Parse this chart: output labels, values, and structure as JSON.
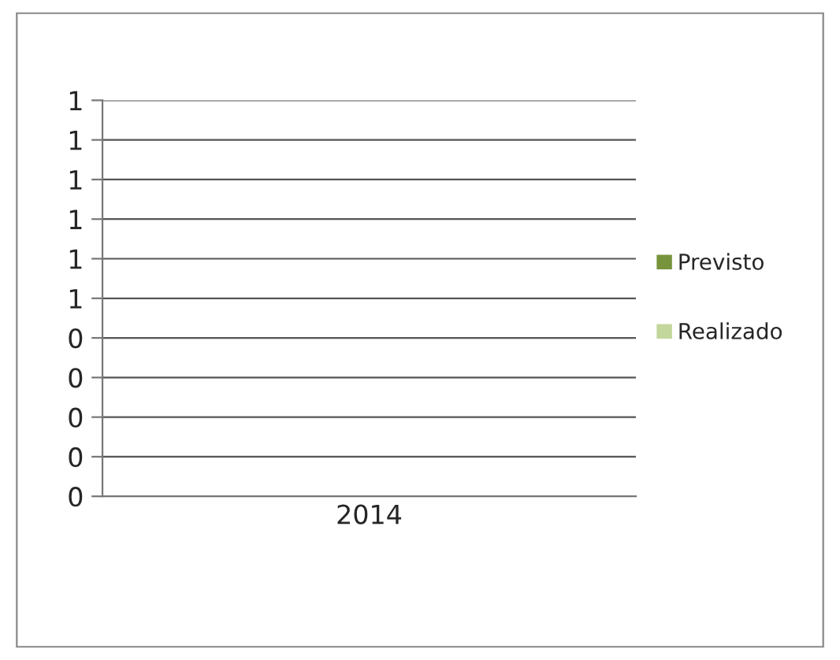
{
  "chart_data": {
    "type": "bar",
    "categories": [
      "2014"
    ],
    "series": [
      {
        "name": "Previsto",
        "color": "#77933c",
        "values": [
          null
        ]
      },
      {
        "name": "Realizado",
        "color": "#c3d69b",
        "values": [
          null
        ]
      }
    ],
    "ylim": [
      0,
      1
    ],
    "yticks": [
      {
        "value": 0,
        "label": "0"
      },
      {
        "value": 0.1,
        "label": "0"
      },
      {
        "value": 0.2,
        "label": "0"
      },
      {
        "value": 0.3,
        "label": "0"
      },
      {
        "value": 0.4,
        "label": "0"
      },
      {
        "value": 0.5,
        "label": "1"
      },
      {
        "value": 0.6,
        "label": "1"
      },
      {
        "value": 0.7,
        "label": "1"
      },
      {
        "value": 0.8,
        "label": "1"
      },
      {
        "value": 0.9,
        "label": "1"
      },
      {
        "value": 1,
        "label": "1"
      }
    ],
    "grid": "y",
    "legend": "right"
  }
}
